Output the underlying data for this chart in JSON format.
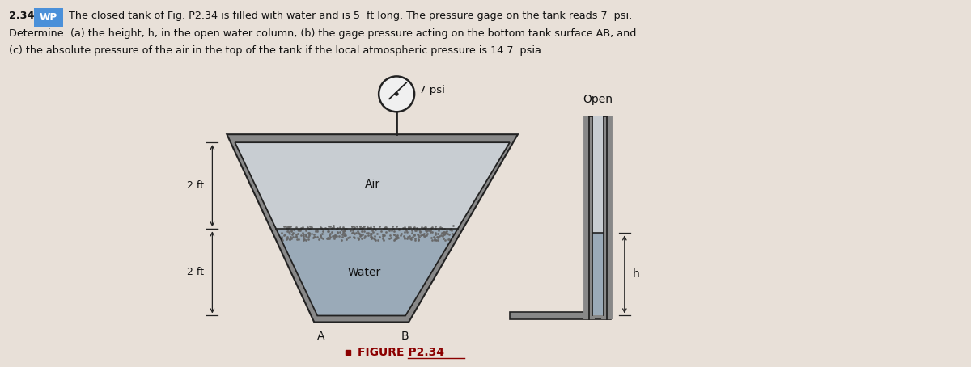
{
  "bg_color": "#e8e0d8",
  "tank_wall_color": "#888888",
  "tank_fill_light": "#c0c8d0",
  "water_color": "#9aaab8",
  "air_color": "#c8cdd2",
  "dot_color": "#666666",
  "line_color": "#222222",
  "gauge_face": "#f0f0f0",
  "header_line1_pre": "2.34",
  "header_wp": "WP",
  "header_line1_post": " The closed tank of Fig. P2.34 is filled with water and is 5  ft long. The pressure gage on the tank reads 7  psi.",
  "header_line2": "Determine: (a) the height, h, in the open water column, (b) the gage pressure acting on the bottom tank surface AB, and",
  "header_line3": "(c) the absolute pressure of the air in the top of the tank if the local atmospheric pressure is 14.7  psia.",
  "air_label": "Air",
  "water_label": "Water",
  "psi_label": "7 psi",
  "open_label": "Open",
  "h_label": "h",
  "dim_2ft_upper": "2 ft",
  "dim_2ft_lower": "2 ft",
  "a_label": "A",
  "b_label": "B",
  "fig_label": "FIGURE P2.34",
  "fig_bullet_color": "#8B0000",
  "wp_bg": "#4a90d9",
  "text_color": "#111111"
}
